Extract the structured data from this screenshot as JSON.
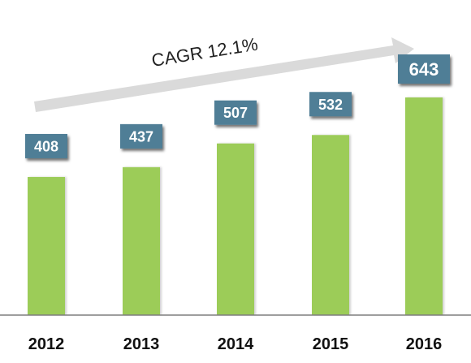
{
  "chart_data": {
    "type": "bar",
    "categories": [
      "2012",
      "2013",
      "2014",
      "2015",
      "2016"
    ],
    "values": [
      408,
      437,
      507,
      532,
      643
    ],
    "value_labels": [
      "408",
      "437",
      "507",
      "532",
      "643"
    ],
    "annotation": "CAGR 12.1%",
    "ylim": [
      0,
      750
    ],
    "grid": false,
    "colors": {
      "bar": "#9ccc59",
      "label_box": "#4f7e96",
      "label_text": "#ffffff",
      "arrow": "#dcdcdc",
      "axis": "#7f7f7f"
    }
  }
}
